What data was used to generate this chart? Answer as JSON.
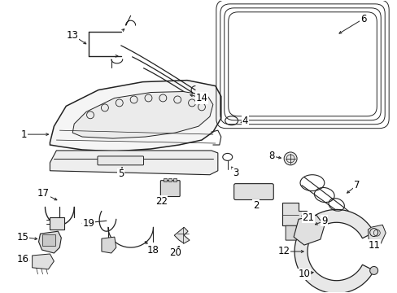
{
  "background_color": "#ffffff",
  "line_color": "#222222",
  "figsize": [
    4.89,
    3.6
  ],
  "dpi": 100,
  "label_fontsize": 8.5,
  "seal_color": "#333333",
  "part_fill": "#f2f2f2",
  "part_fill2": "#e0e0e0"
}
